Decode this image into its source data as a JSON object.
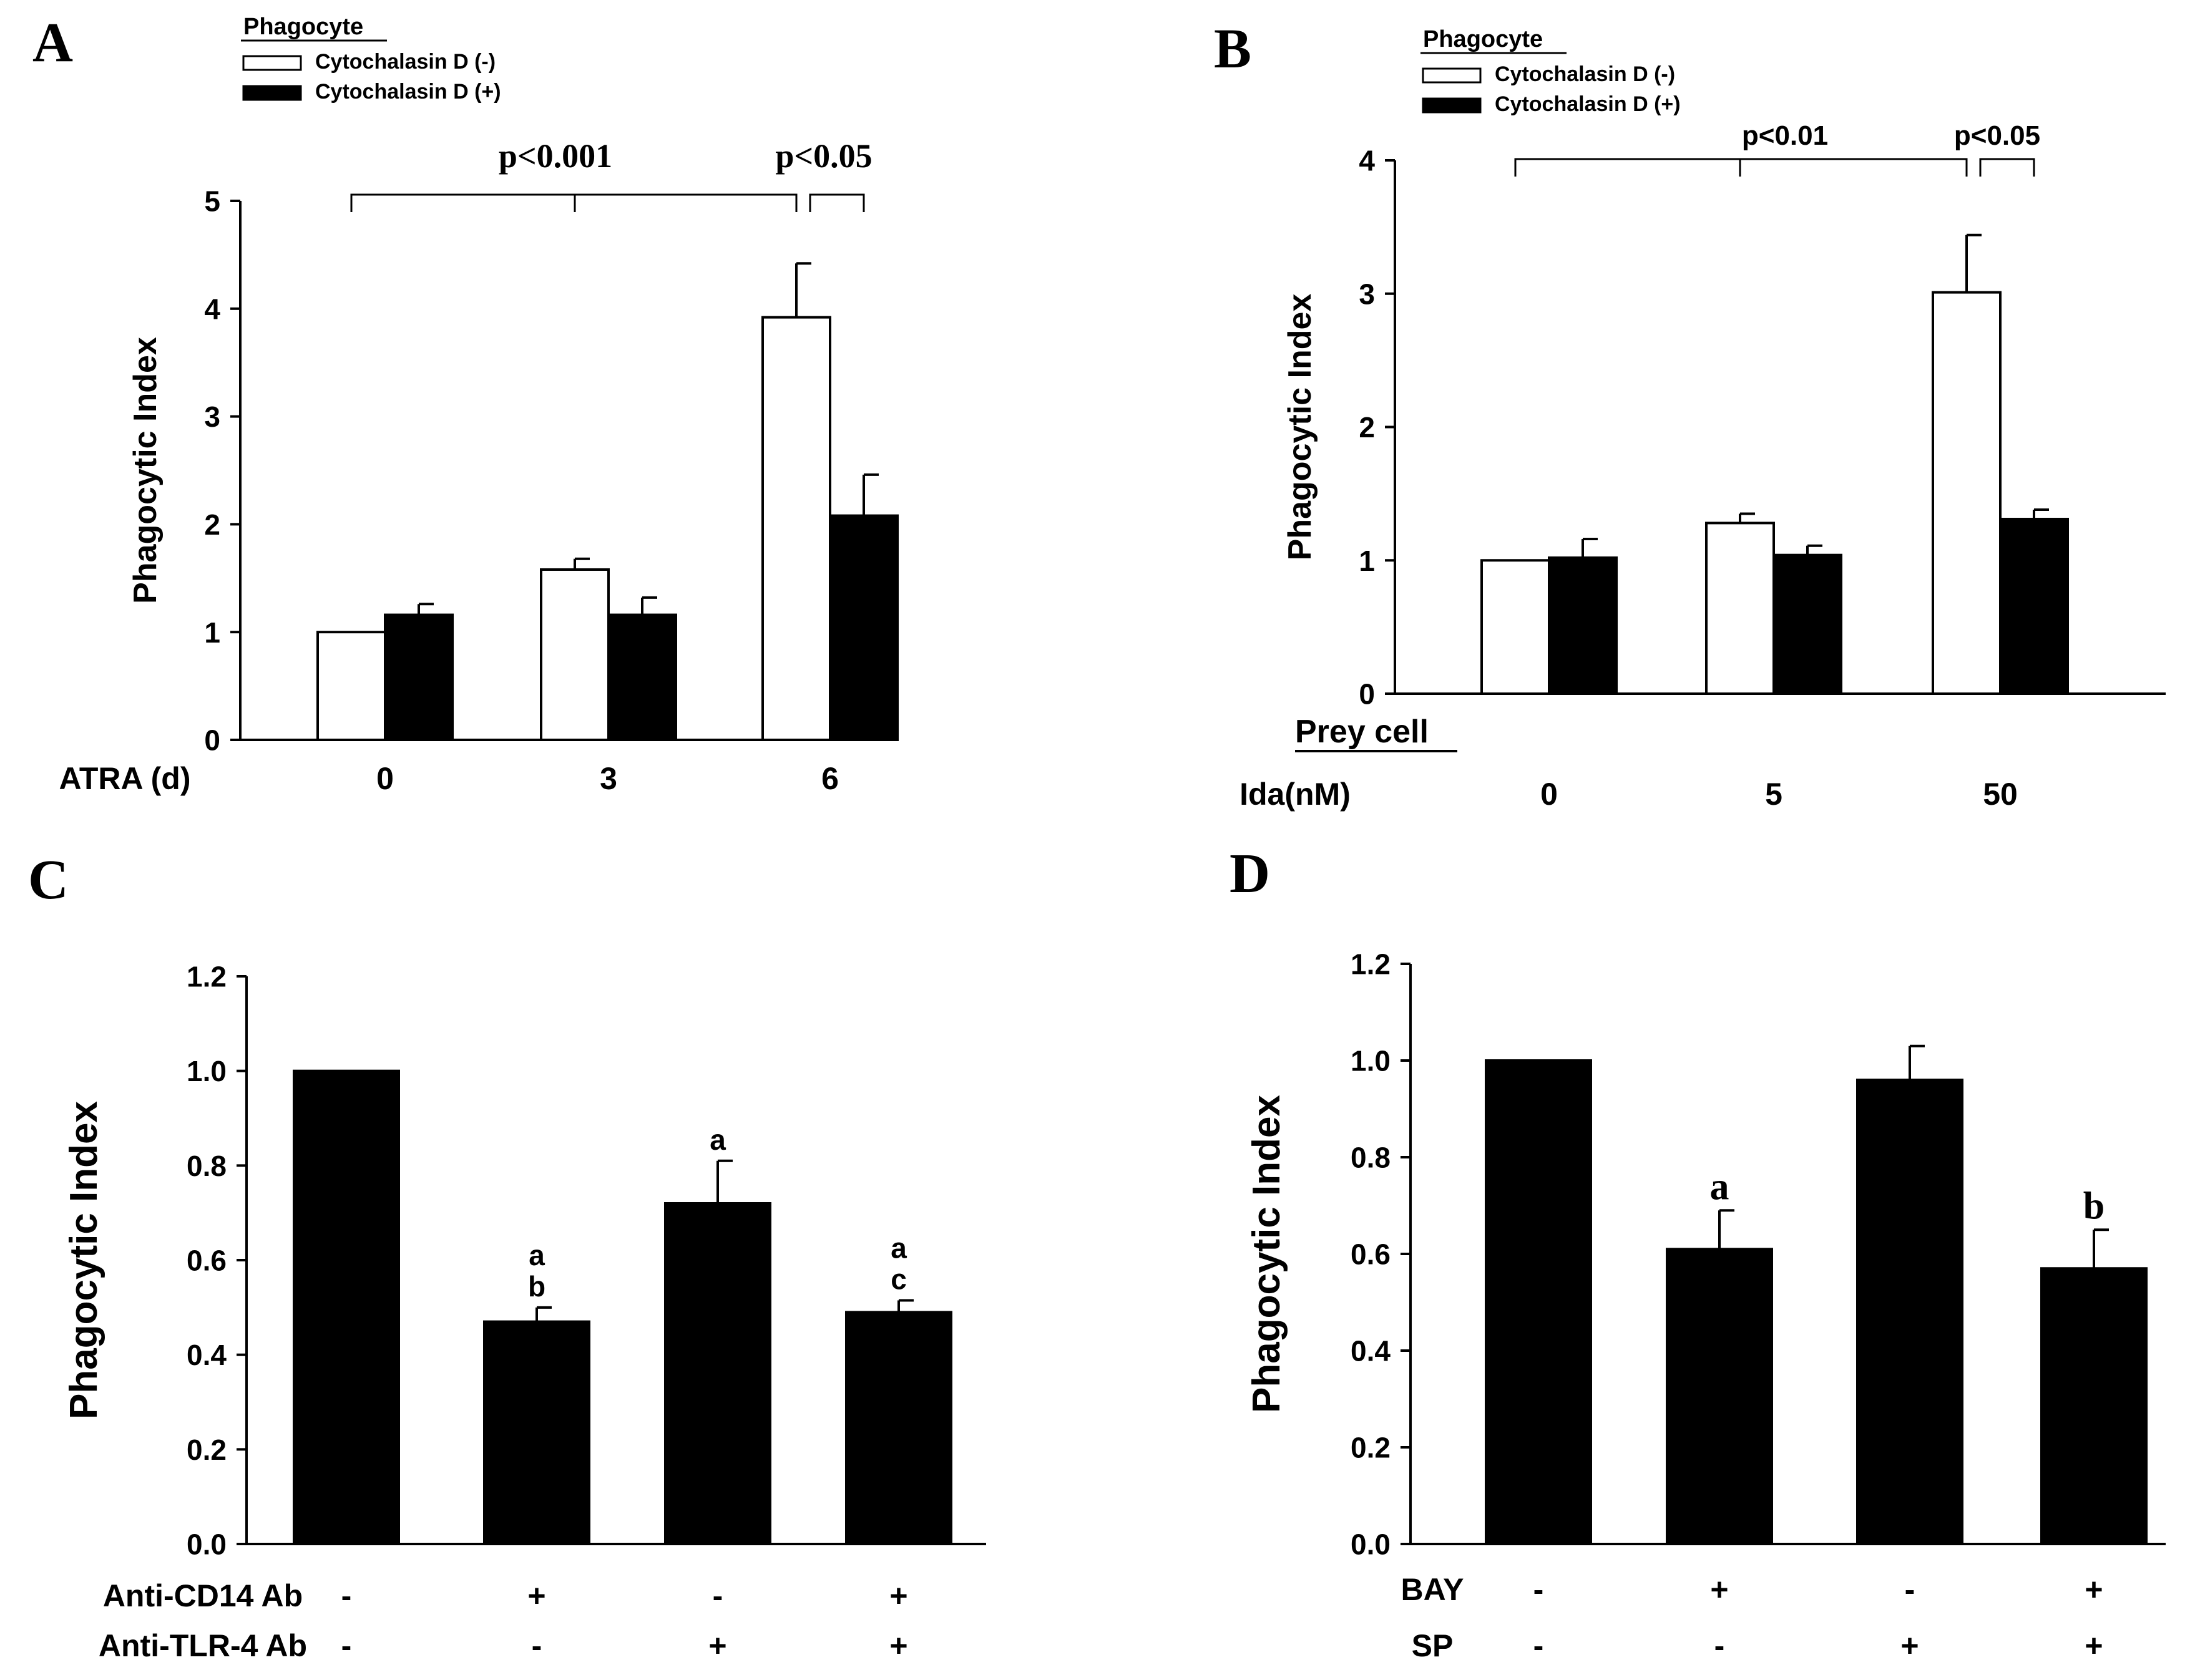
{
  "figure": {
    "panels": [
      "A",
      "B",
      "C",
      "D"
    ]
  },
  "chart_data": [
    {
      "panel": "A",
      "type": "bar",
      "ylabel": "Phagocytic Index",
      "ylim": [
        0,
        5
      ],
      "yticks": [
        "0",
        "1",
        "2",
        "3",
        "4",
        "5"
      ],
      "legend_title": "Phagocyte",
      "legend_position": "top-left",
      "factor_rows": [
        {
          "label": "ATRA (d)",
          "values": [
            "0",
            "3",
            "6"
          ]
        }
      ],
      "categories": [
        "0",
        "3",
        "6"
      ],
      "series": [
        {
          "name": "Cytochalasin D (-)",
          "color": "#ffffff",
          "values": [
            1.0,
            1.58,
            3.92
          ],
          "errors": [
            0.0,
            0.1,
            0.5
          ]
        },
        {
          "name": "Cytochalasin D (+)",
          "color": "#000000",
          "values": [
            1.16,
            1.16,
            2.08
          ],
          "errors": [
            0.1,
            0.16,
            0.38
          ]
        }
      ],
      "annotations": [
        {
          "type": "bracket-multi",
          "group": "start-to-end",
          "label": "p<0.001"
        },
        {
          "type": "bracket-pair",
          "label": "p<0.05"
        }
      ]
    },
    {
      "panel": "B",
      "type": "bar",
      "ylabel": "Phagocytic Index",
      "ylim": [
        0,
        4
      ],
      "yticks": [
        "0",
        "1",
        "2",
        "3",
        "4"
      ],
      "legend_title": "Phagocyte",
      "legend_position": "top-left",
      "factor_header": "Prey cell",
      "factor_rows": [
        {
          "label": "Ida(nM)",
          "values": [
            "0",
            "5",
            "50"
          ]
        }
      ],
      "categories": [
        "0",
        "5",
        "50"
      ],
      "series": [
        {
          "name": "Cytochalasin D (-)",
          "color": "#ffffff",
          "values": [
            1.0,
            1.28,
            3.01
          ],
          "errors": [
            0.0,
            0.07,
            0.43
          ]
        },
        {
          "name": "Cytochalasin D (+)",
          "color": "#000000",
          "values": [
            1.02,
            1.04,
            1.31
          ],
          "errors": [
            0.14,
            0.07,
            0.07
          ]
        }
      ],
      "annotations": [
        {
          "type": "bracket-multi",
          "label": "p<0.01"
        },
        {
          "type": "bracket-pair",
          "label": "p<0.05"
        }
      ]
    },
    {
      "panel": "C",
      "type": "bar",
      "ylabel": "Phagocytic Index",
      "ylim": [
        0,
        1.2
      ],
      "yticks": [
        "0.0",
        "0.2",
        "0.4",
        "0.6",
        "0.8",
        "1.0",
        "1.2"
      ],
      "factor_rows": [
        {
          "label": "Anti-CD14 Ab",
          "values": [
            "-",
            "+",
            "-",
            "+"
          ]
        },
        {
          "label": "Anti-TLR-4 Ab",
          "values": [
            "-",
            "-",
            "+",
            "+"
          ]
        }
      ],
      "series": [
        {
          "color": "#000000",
          "values": [
            1.0,
            0.47,
            0.72,
            0.49
          ],
          "errors": [
            0.0,
            0.03,
            0.09,
            0.025
          ]
        }
      ],
      "bar_labels": [
        [],
        [
          "a",
          "b"
        ],
        [
          "a"
        ],
        [
          "a",
          "c"
        ]
      ]
    },
    {
      "panel": "D",
      "type": "bar",
      "ylabel": "Phagocytic Index",
      "ylim": [
        0,
        1.2
      ],
      "yticks": [
        "0.0",
        "0.2",
        "0.4",
        "0.6",
        "0.8",
        "1.0",
        "1.2"
      ],
      "factor_rows": [
        {
          "label": "BAY",
          "values": [
            "-",
            "+",
            "-",
            "+"
          ]
        },
        {
          "label": "SP",
          "values": [
            "-",
            "-",
            "+",
            "+"
          ]
        }
      ],
      "series": [
        {
          "color": "#000000",
          "values": [
            1.0,
            0.61,
            0.96,
            0.57
          ],
          "errors": [
            0.0,
            0.08,
            0.07,
            0.08
          ]
        }
      ],
      "bar_labels": [
        [],
        [
          "a"
        ],
        [],
        [
          "b"
        ]
      ]
    }
  ]
}
